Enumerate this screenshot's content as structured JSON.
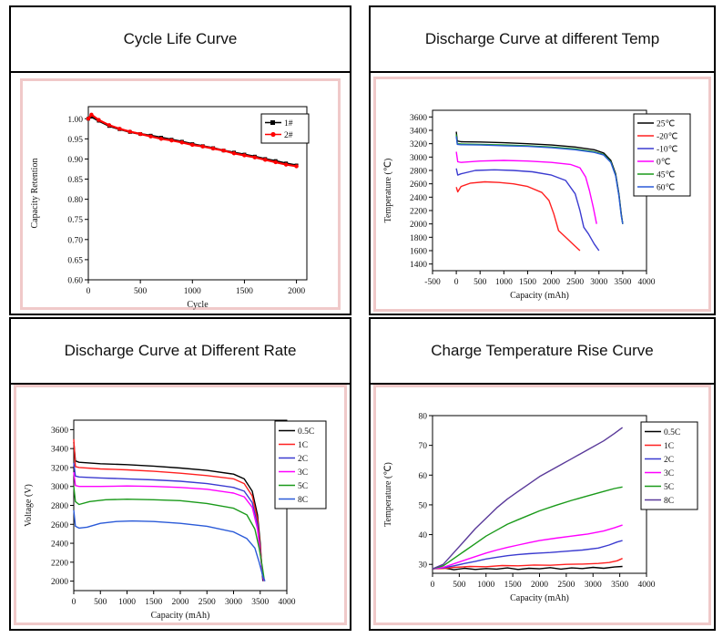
{
  "panels": [
    {
      "title": "Cycle Life Curve"
    },
    {
      "title": "Discharge Curve at different Temp"
    },
    {
      "title": "Discharge Curve at Different Rate"
    },
    {
      "title": "Charge Temperature Rise Curve"
    }
  ],
  "chart_data": [
    {
      "type": "line",
      "title": "",
      "xlabel": "Cycle",
      "ylabel": "Capacity Retention",
      "xlim": [
        0,
        2100
      ],
      "ylim": [
        0.6,
        1.03
      ],
      "xticks": [
        0,
        500,
        1000,
        1500,
        2000
      ],
      "yticks": [
        0.6,
        0.65,
        0.7,
        0.75,
        0.8,
        0.85,
        0.9,
        0.95,
        1.0
      ],
      "ytick_format": "2",
      "legend_position": "top-right",
      "series": [
        {
          "name": "1#",
          "color": "#000000",
          "marker": "square",
          "x": [
            0,
            30,
            100,
            200,
            300,
            400,
            500,
            600,
            700,
            800,
            900,
            1000,
            1100,
            1200,
            1300,
            1400,
            1500,
            1600,
            1700,
            1800,
            1900,
            2000
          ],
          "y": [
            1.0,
            1.005,
            0.995,
            0.982,
            0.974,
            0.967,
            0.962,
            0.958,
            0.953,
            0.948,
            0.943,
            0.937,
            0.932,
            0.927,
            0.921,
            0.916,
            0.911,
            0.906,
            0.9,
            0.895,
            0.889,
            0.884
          ]
        },
        {
          "name": "2#",
          "color": "#ff0000",
          "marker": "circle",
          "x": [
            0,
            30,
            100,
            200,
            300,
            400,
            500,
            600,
            700,
            800,
            900,
            1000,
            1100,
            1200,
            1300,
            1400,
            1500,
            1600,
            1700,
            1800,
            1900,
            2000
          ],
          "y": [
            1.0,
            1.01,
            0.997,
            0.984,
            0.975,
            0.968,
            0.962,
            0.956,
            0.95,
            0.946,
            0.941,
            0.935,
            0.931,
            0.926,
            0.921,
            0.914,
            0.909,
            0.904,
            0.898,
            0.892,
            0.886,
            0.882
          ]
        }
      ]
    },
    {
      "type": "line",
      "title": "",
      "xlabel": "Capacity (mAh)",
      "ylabel": "Temperature (℃)",
      "xlim": [
        -500,
        4000
      ],
      "ylim": [
        1300,
        3700
      ],
      "xticks": [
        -500,
        0,
        500,
        1000,
        1500,
        2000,
        2500,
        3000,
        3500,
        4000
      ],
      "yticks": [
        1400,
        1600,
        1800,
        2000,
        2200,
        2400,
        2600,
        2800,
        3000,
        3200,
        3400,
        3600
      ],
      "ytick_format": "0",
      "legend_position": "top-right",
      "series": [
        {
          "name": "25℃",
          "color": "#000000",
          "x": [
            0,
            20,
            100,
            500,
            1000,
            1500,
            2000,
            2500,
            2900,
            3100,
            3250,
            3350,
            3420,
            3470,
            3500
          ],
          "y": [
            3380,
            3240,
            3230,
            3225,
            3215,
            3200,
            3180,
            3150,
            3110,
            3060,
            2950,
            2750,
            2450,
            2150,
            2000
          ]
        },
        {
          "name": "-20℃",
          "color": "#ff2020",
          "x": [
            0,
            30,
            100,
            300,
            600,
            900,
            1200,
            1500,
            1800,
            1950,
            2050,
            2150,
            2300,
            2450,
            2600
          ],
          "y": [
            2550,
            2480,
            2560,
            2610,
            2630,
            2620,
            2600,
            2560,
            2470,
            2350,
            2150,
            1900,
            1800,
            1700,
            1600
          ]
        },
        {
          "name": "-10℃",
          "color": "#3b3bd0",
          "x": [
            0,
            30,
            100,
            400,
            800,
            1200,
            1600,
            2000,
            2300,
            2500,
            2600,
            2680,
            2780,
            2900,
            3000
          ],
          "y": [
            2830,
            2730,
            2750,
            2800,
            2810,
            2800,
            2780,
            2730,
            2650,
            2450,
            2200,
            1950,
            1850,
            1700,
            1600
          ]
        },
        {
          "name": "0℃",
          "color": "#ff00ff",
          "x": [
            0,
            30,
            100,
            500,
            1000,
            1500,
            2000,
            2400,
            2600,
            2720,
            2800,
            2880,
            2950
          ],
          "y": [
            3080,
            2930,
            2920,
            2940,
            2950,
            2940,
            2920,
            2890,
            2840,
            2700,
            2500,
            2250,
            2000
          ]
        },
        {
          "name": "45℃",
          "color": "#1a9a1a",
          "x": [
            0,
            20,
            100,
            500,
            1000,
            1500,
            2000,
            2500,
            2900,
            3100,
            3250,
            3350,
            3420,
            3470,
            3500
          ],
          "y": [
            3340,
            3200,
            3195,
            3190,
            3180,
            3170,
            3150,
            3120,
            3080,
            3040,
            2930,
            2730,
            2430,
            2130,
            2000
          ]
        },
        {
          "name": "60℃",
          "color": "#2a5ad8",
          "x": [
            0,
            20,
            100,
            500,
            1000,
            1500,
            2000,
            2500,
            2900,
            3100,
            3250,
            3350,
            3420,
            3470,
            3500
          ],
          "y": [
            3310,
            3190,
            3185,
            3180,
            3170,
            3160,
            3140,
            3110,
            3070,
            3030,
            2920,
            2720,
            2420,
            2120,
            2000
          ]
        }
      ]
    },
    {
      "type": "line",
      "title": "",
      "xlabel": "Capacity (mAh)",
      "ylabel": "Voltage (V)",
      "xlim": [
        0,
        4000
      ],
      "ylim": [
        1900,
        3700
      ],
      "xticks": [
        0,
        500,
        1000,
        1500,
        2000,
        2500,
        3000,
        3500,
        4000
      ],
      "yticks": [
        2000,
        2200,
        2400,
        2600,
        2800,
        3000,
        3200,
        3400,
        3600
      ],
      "ytick_format": "0",
      "legend_position": "top-right",
      "series": [
        {
          "name": "0.5C",
          "color": "#000000",
          "x": [
            0,
            30,
            100,
            500,
            1000,
            1500,
            2000,
            2500,
            3000,
            3200,
            3350,
            3450,
            3500,
            3530,
            3550
          ],
          "y": [
            3470,
            3270,
            3255,
            3240,
            3230,
            3215,
            3195,
            3170,
            3130,
            3080,
            2950,
            2700,
            2400,
            2150,
            2000
          ]
        },
        {
          "name": "1C",
          "color": "#ff2020",
          "x": [
            0,
            30,
            100,
            500,
            1000,
            1500,
            2000,
            2500,
            3000,
            3200,
            3350,
            3450,
            3500,
            3540,
            3560
          ],
          "y": [
            3500,
            3210,
            3200,
            3185,
            3175,
            3160,
            3140,
            3115,
            3080,
            3030,
            2900,
            2650,
            2350,
            2100,
            2000
          ]
        },
        {
          "name": "2C",
          "color": "#3b3bd0",
          "x": [
            0,
            30,
            100,
            500,
            1000,
            1500,
            2000,
            2500,
            3000,
            3200,
            3350,
            3450,
            3500,
            3540,
            3560
          ],
          "y": [
            3250,
            3110,
            3100,
            3090,
            3080,
            3070,
            3055,
            3030,
            2990,
            2950,
            2830,
            2600,
            2300,
            2100,
            2000
          ]
        },
        {
          "name": "3C",
          "color": "#ff00ff",
          "x": [
            0,
            30,
            100,
            500,
            1000,
            1500,
            2000,
            2500,
            3000,
            3200,
            3350,
            3450,
            3500,
            3540,
            3570
          ],
          "y": [
            3150,
            3010,
            3000,
            3000,
            3005,
            3000,
            2990,
            2970,
            2930,
            2890,
            2780,
            2550,
            2300,
            2100,
            2000
          ]
        },
        {
          "name": "5C",
          "color": "#1a9a1a",
          "x": [
            0,
            30,
            100,
            300,
            600,
            1000,
            1500,
            2000,
            2500,
            3000,
            3250,
            3400,
            3480,
            3540,
            3580
          ],
          "y": [
            3000,
            2840,
            2810,
            2840,
            2860,
            2865,
            2860,
            2850,
            2820,
            2770,
            2700,
            2550,
            2350,
            2150,
            2000
          ]
        },
        {
          "name": "8C",
          "color": "#2a5ad8",
          "x": [
            0,
            30,
            100,
            250,
            500,
            800,
            1100,
            1500,
            2000,
            2500,
            3000,
            3250,
            3400,
            3480,
            3550,
            3590
          ],
          "y": [
            2750,
            2580,
            2560,
            2570,
            2610,
            2630,
            2635,
            2630,
            2610,
            2580,
            2520,
            2450,
            2350,
            2200,
            2050,
            2000
          ]
        }
      ]
    },
    {
      "type": "line",
      "title": "",
      "xlabel": "Capacity (mAh)",
      "ylabel": "Temperature (℃)",
      "xlim": [
        0,
        4000
      ],
      "ylim": [
        27,
        80
      ],
      "xticks": [
        0,
        500,
        1000,
        1500,
        2000,
        2500,
        3000,
        3500,
        4000
      ],
      "yticks": [
        30,
        40,
        50,
        60,
        70,
        80
      ],
      "ytick_format": "0",
      "legend_position": "top-right",
      "series": [
        {
          "name": "0.5C",
          "color": "#000000",
          "x": [
            0,
            200,
            400,
            600,
            800,
            1000,
            1200,
            1400,
            1600,
            1800,
            2000,
            2200,
            2400,
            2600,
            2800,
            3000,
            3200,
            3400,
            3550
          ],
          "y": [
            28.5,
            28.8,
            28.2,
            28.7,
            28.3,
            28.6,
            28.4,
            28.8,
            28.3,
            28.7,
            28.5,
            28.9,
            28.4,
            28.8,
            28.6,
            29.0,
            28.7,
            29.1,
            29.3
          ]
        },
        {
          "name": "1C",
          "color": "#ff2020",
          "x": [
            0,
            200,
            400,
            700,
            1000,
            1300,
            1600,
            1900,
            2200,
            2500,
            2800,
            3100,
            3300,
            3450,
            3550
          ],
          "y": [
            28.5,
            28.6,
            29.0,
            29.3,
            29.2,
            29.6,
            29.5,
            29.8,
            29.7,
            30.0,
            30.1,
            30.3,
            30.6,
            31.2,
            32.0
          ]
        },
        {
          "name": "2C",
          "color": "#3b3bd0",
          "x": [
            0,
            200,
            400,
            600,
            800,
            1000,
            1200,
            1400,
            1600,
            1800,
            2000,
            2200,
            2500,
            2800,
            3100,
            3300,
            3450,
            3550
          ],
          "y": [
            28.5,
            28.8,
            29.5,
            30.3,
            31.0,
            31.8,
            32.4,
            32.9,
            33.3,
            33.6,
            33.8,
            34.0,
            34.4,
            34.8,
            35.5,
            36.5,
            37.5,
            38.0
          ]
        },
        {
          "name": "3C",
          "color": "#ff00ff",
          "x": [
            0,
            200,
            400,
            600,
            800,
            1000,
            1200,
            1400,
            1600,
            1800,
            2000,
            2300,
            2600,
            2900,
            3200,
            3400,
            3550
          ],
          "y": [
            28.5,
            29.0,
            30.2,
            31.4,
            32.6,
            33.8,
            34.8,
            35.7,
            36.5,
            37.3,
            38.0,
            38.8,
            39.5,
            40.2,
            41.2,
            42.3,
            43.2
          ]
        },
        {
          "name": "5C",
          "color": "#1a9a1a",
          "x": [
            0,
            200,
            400,
            600,
            800,
            1000,
            1200,
            1400,
            1600,
            1800,
            2000,
            2300,
            2600,
            2900,
            3200,
            3400,
            3550
          ],
          "y": [
            28.5,
            29.5,
            32.0,
            34.5,
            37.0,
            39.5,
            41.5,
            43.5,
            45.0,
            46.5,
            48.0,
            49.8,
            51.5,
            53.0,
            54.5,
            55.5,
            56.0
          ]
        },
        {
          "name": "8C",
          "color": "#5a3a9a",
          "x": [
            0,
            200,
            400,
            600,
            800,
            1000,
            1200,
            1400,
            1600,
            1800,
            2000,
            2300,
            2600,
            2900,
            3200,
            3400,
            3550
          ],
          "y": [
            28.5,
            30.0,
            34.0,
            38.0,
            42.0,
            45.5,
            49.0,
            52.0,
            54.5,
            57.0,
            59.5,
            62.5,
            65.5,
            68.5,
            71.5,
            74.0,
            76.0
          ]
        }
      ]
    }
  ]
}
